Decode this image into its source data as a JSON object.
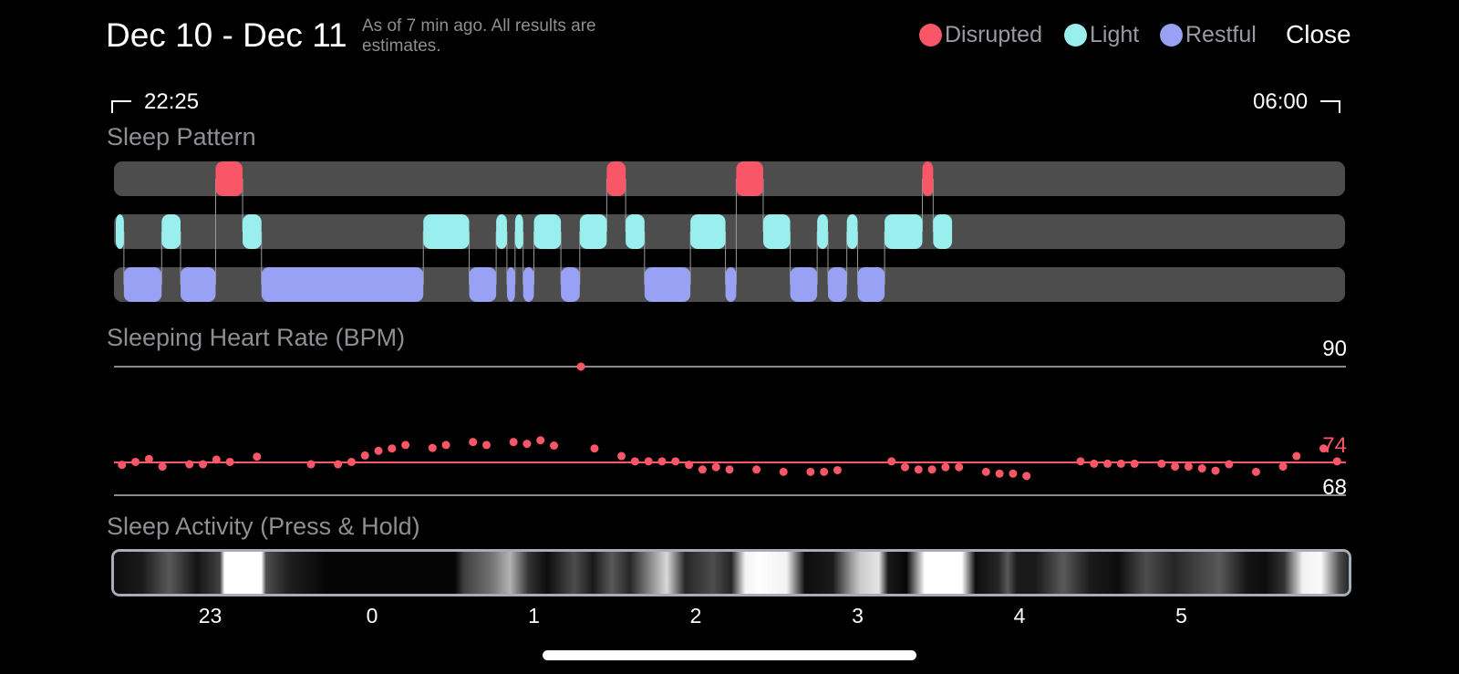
{
  "header": {
    "date_range": "Dec 10 - Dec 11",
    "as_of": "As of 7 min ago. All results are estimates.",
    "close_label": "Close"
  },
  "legend": [
    {
      "label": "Disrupted",
      "color": "#f95667"
    },
    {
      "label": "Light",
      "color": "#99eeee"
    },
    {
      "label": "Restful",
      "color": "#99a1f5"
    }
  ],
  "range": {
    "start": "22:25",
    "end": "06:00"
  },
  "sleep_pattern": {
    "title": "Sleep Pattern",
    "track_color": "#4d4d4d",
    "segments": [
      {
        "stage": "light",
        "start": "22:25",
        "end": "22:28"
      },
      {
        "stage": "restful",
        "start": "22:28",
        "end": "22:42"
      },
      {
        "stage": "light",
        "start": "22:42",
        "end": "22:49"
      },
      {
        "stage": "restful",
        "start": "22:49",
        "end": "23:02"
      },
      {
        "stage": "disrupted",
        "start": "23:02",
        "end": "23:12"
      },
      {
        "stage": "light",
        "start": "23:12",
        "end": "23:19"
      },
      {
        "stage": "restful",
        "start": "23:19",
        "end": "00:19"
      },
      {
        "stage": "light",
        "start": "00:19",
        "end": "00:36"
      },
      {
        "stage": "restful",
        "start": "00:36",
        "end": "00:46"
      },
      {
        "stage": "light",
        "start": "00:46",
        "end": "00:50"
      },
      {
        "stage": "restful",
        "start": "00:50",
        "end": "00:53"
      },
      {
        "stage": "light",
        "start": "00:53",
        "end": "00:56"
      },
      {
        "stage": "restful",
        "start": "00:56",
        "end": "01:00"
      },
      {
        "stage": "light",
        "start": "01:00",
        "end": "01:10"
      },
      {
        "stage": "restful",
        "start": "01:10",
        "end": "01:17"
      },
      {
        "stage": "light",
        "start": "01:17",
        "end": "01:27"
      },
      {
        "stage": "disrupted",
        "start": "01:27",
        "end": "01:34"
      },
      {
        "stage": "light",
        "start": "01:34",
        "end": "01:41"
      },
      {
        "stage": "restful",
        "start": "01:41",
        "end": "01:58"
      },
      {
        "stage": "light",
        "start": "01:58",
        "end": "02:11"
      },
      {
        "stage": "restful",
        "start": "02:11",
        "end": "02:15"
      },
      {
        "stage": "disrupted",
        "start": "02:15",
        "end": "02:25"
      },
      {
        "stage": "light",
        "start": "02:25",
        "end": "02:35"
      },
      {
        "stage": "restful",
        "start": "02:35",
        "end": "02:45"
      },
      {
        "stage": "light",
        "start": "02:45",
        "end": "02:49"
      },
      {
        "stage": "restful",
        "start": "02:49",
        "end": "02:56"
      },
      {
        "stage": "light",
        "start": "02:56",
        "end": "03:00"
      },
      {
        "stage": "restful",
        "start": "03:00",
        "end": "03:10"
      },
      {
        "stage": "light",
        "start": "03:10",
        "end": "03:24"
      },
      {
        "stage": "disrupted",
        "start": "03:24",
        "end": "03:28"
      },
      {
        "stage": "light",
        "start": "03:28",
        "end": "03:35"
      }
    ]
  },
  "heart_rate": {
    "title": "Sleeping Heart Rate (BPM)",
    "max_label": "90",
    "avg_label": "74",
    "min_label": "68",
    "color": "#f95667",
    "points": [
      [
        0.005,
        73.2
      ],
      [
        0.016,
        73.7
      ],
      [
        0.027,
        74.2
      ],
      [
        0.038,
        72.9
      ],
      [
        0.06,
        73.3
      ],
      [
        0.071,
        73.3
      ],
      [
        0.082,
        74.1
      ],
      [
        0.093,
        73.7
      ],
      [
        0.115,
        74.6
      ],
      [
        0.159,
        73.3
      ],
      [
        0.181,
        73.3
      ],
      [
        0.192,
        73.7
      ],
      [
        0.203,
        74.8
      ],
      [
        0.214,
        75.6
      ],
      [
        0.225,
        76.0
      ],
      [
        0.236,
        76.6
      ],
      [
        0.258,
        76.1
      ],
      [
        0.269,
        76.6
      ],
      [
        0.291,
        77.1
      ],
      [
        0.302,
        76.6
      ],
      [
        0.324,
        77.1
      ],
      [
        0.335,
        76.8
      ],
      [
        0.346,
        77.4
      ],
      [
        0.357,
        76.5
      ],
      [
        0.379,
        90.0
      ],
      [
        0.39,
        76.0
      ],
      [
        0.412,
        74.7
      ],
      [
        0.423,
        73.8
      ],
      [
        0.434,
        73.8
      ],
      [
        0.445,
        73.8
      ],
      [
        0.456,
        73.8
      ],
      [
        0.467,
        73.2
      ],
      [
        0.478,
        72.4
      ],
      [
        0.489,
        72.8
      ],
      [
        0.5,
        72.4
      ],
      [
        0.522,
        72.4
      ],
      [
        0.544,
        72.0
      ],
      [
        0.566,
        72.0
      ],
      [
        0.577,
        72.0
      ],
      [
        0.588,
        72.3
      ],
      [
        0.632,
        73.8
      ],
      [
        0.643,
        72.8
      ],
      [
        0.654,
        72.4
      ],
      [
        0.665,
        72.4
      ],
      [
        0.676,
        72.8
      ],
      [
        0.687,
        72.8
      ],
      [
        0.709,
        72.0
      ],
      [
        0.72,
        71.7
      ],
      [
        0.731,
        71.7
      ],
      [
        0.742,
        71.3
      ],
      [
        0.786,
        73.8
      ],
      [
        0.797,
        73.4
      ],
      [
        0.808,
        73.4
      ],
      [
        0.819,
        73.4
      ],
      [
        0.83,
        73.4
      ],
      [
        0.852,
        73.4
      ],
      [
        0.863,
        72.9
      ],
      [
        0.874,
        72.9
      ],
      [
        0.885,
        72.6
      ],
      [
        0.896,
        72.2
      ],
      [
        0.907,
        73.3
      ],
      [
        0.929,
        72.0
      ],
      [
        0.951,
        72.9
      ],
      [
        0.962,
        74.7
      ],
      [
        0.984,
        76.0
      ],
      [
        0.995,
        73.8
      ]
    ]
  },
  "sleep_activity": {
    "title": "Sleep Activity (Press & Hold)",
    "stops": [
      [
        0,
        0.05
      ],
      [
        0.03,
        0.1
      ],
      [
        0.06,
        0.35
      ],
      [
        0.09,
        0.08
      ],
      [
        0.115,
        0.25
      ],
      [
        0.12,
        1
      ],
      [
        0.16,
        1
      ],
      [
        0.165,
        0.3
      ],
      [
        0.19,
        0.12
      ],
      [
        0.22,
        0.05
      ],
      [
        0.23,
        0.02
      ],
      [
        0.37,
        0.02
      ],
      [
        0.38,
        0.25
      ],
      [
        0.41,
        0.45
      ],
      [
        0.43,
        0.7
      ],
      [
        0.45,
        0.2
      ],
      [
        0.47,
        0.05
      ],
      [
        0.5,
        0.3
      ],
      [
        0.52,
        0.1
      ],
      [
        0.54,
        0.35
      ],
      [
        0.56,
        0.15
      ],
      [
        0.58,
        0.5
      ],
      [
        0.6,
        0.85
      ],
      [
        0.62,
        0.15
      ],
      [
        0.65,
        0.3
      ],
      [
        0.67,
        0.15
      ],
      [
        0.685,
        0.95
      ],
      [
        0.7,
        1
      ],
      [
        0.73,
        0.95
      ],
      [
        0.75,
        0.05
      ],
      [
        0.78,
        0.1
      ],
      [
        0.8,
        0.6
      ],
      [
        0.81,
        0.8
      ],
      [
        0.83,
        0.9
      ],
      [
        0.84,
        0.1
      ],
      [
        0.86,
        0.02
      ],
      [
        0.88,
        1
      ],
      [
        0.9,
        1
      ],
      [
        0.92,
        1
      ],
      [
        0.935,
        0.05
      ],
      [
        0.96,
        0.15
      ],
      [
        0.97,
        0.35
      ],
      [
        0.98,
        0.1
      ],
      [
        1.0,
        0.1
      ],
      [
        1.03,
        0.35
      ],
      [
        1.06,
        0.1
      ],
      [
        1.09,
        0.05
      ],
      [
        1.12,
        0.3
      ],
      [
        1.15,
        0.15
      ],
      [
        1.2,
        0.35
      ],
      [
        1.23,
        0.08
      ],
      [
        1.25,
        0.05
      ],
      [
        1.27,
        0.2
      ],
      [
        1.29,
        0.95
      ],
      [
        1.31,
        0.98
      ],
      [
        1.33,
        0.3
      ],
      [
        1.34,
        0.15
      ]
    ],
    "ticks": [
      "23",
      "0",
      "1",
      "2",
      "3",
      "4",
      "5"
    ]
  }
}
